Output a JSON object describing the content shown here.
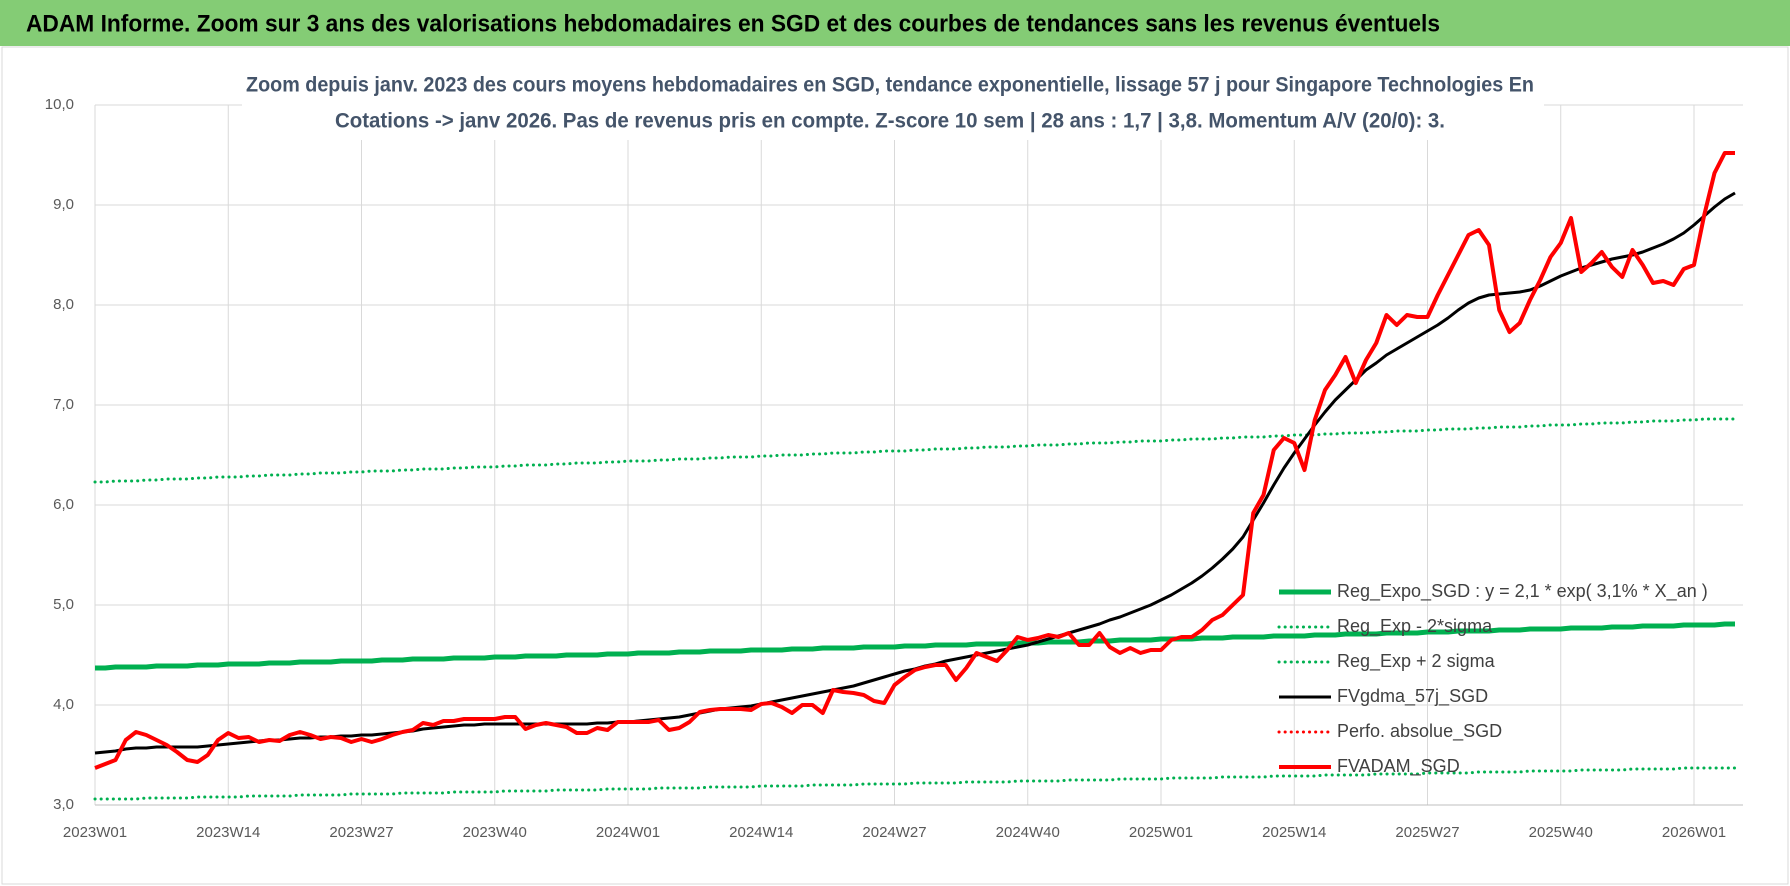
{
  "header": {
    "title": "ADAM Informe. Zoom sur 3 ans des valorisations hebdomadaires en SGD et des courbes de tendances sans les revenus éventuels"
  },
  "chart_data": {
    "type": "line",
    "title": [
      "Zoom depuis janv. 2023 des cours moyens hebdomadaires en SGD, tendance exponentielle, lissage 57 j pour Singapore Technologies En",
      "Cotations -> janv 2026. Pas de revenus pris en compte. Z-score 10 sem | 28 ans : 1,7 | 3,8. Momentum A/V (20/0): 3."
    ],
    "categories": [
      "2023W01",
      null,
      null,
      null,
      null,
      null,
      null,
      null,
      null,
      null,
      null,
      null,
      null,
      "2023W14",
      null,
      null,
      null,
      null,
      null,
      null,
      null,
      null,
      null,
      null,
      null,
      null,
      "2023W27",
      null,
      null,
      null,
      null,
      null,
      null,
      null,
      null,
      null,
      null,
      null,
      null,
      "2023W40",
      null,
      null,
      null,
      null,
      null,
      null,
      null,
      null,
      null,
      null,
      null,
      null,
      "2024W01",
      null,
      null,
      null,
      null,
      null,
      null,
      null,
      null,
      null,
      null,
      null,
      null,
      "2024W14",
      null,
      null,
      null,
      null,
      null,
      null,
      null,
      null,
      null,
      null,
      null,
      null,
      "2024W27",
      null,
      null,
      null,
      null,
      null,
      null,
      null,
      null,
      null,
      null,
      null,
      null,
      "2024W40",
      null,
      null,
      null,
      null,
      null,
      null,
      null,
      null,
      null,
      null,
      null,
      null,
      "2025W01",
      null,
      null,
      null,
      null,
      null,
      null,
      null,
      null,
      null,
      null,
      null,
      null,
      "2025W14",
      null,
      null,
      null,
      null,
      null,
      null,
      null,
      null,
      null,
      null,
      null,
      null,
      "2025W27",
      null,
      null,
      null,
      null,
      null,
      null,
      null,
      null,
      null,
      null,
      null,
      null,
      "2025W40",
      null,
      null,
      null,
      null,
      null,
      null,
      null,
      null,
      null,
      null,
      null,
      null,
      "2026W01",
      null,
      null,
      null,
      null
    ],
    "ylim": [
      3,
      10
    ],
    "yticks": [
      {
        "value": 3,
        "label": "3,0"
      },
      {
        "value": 4,
        "label": "4,0"
      },
      {
        "value": 5,
        "label": "5,0"
      },
      {
        "value": 6,
        "label": "6,0"
      },
      {
        "value": 7,
        "label": "7,0"
      },
      {
        "value": 8,
        "label": "8,0"
      },
      {
        "value": 9,
        "label": "9,0"
      },
      {
        "value": 10,
        "label": "10,0"
      }
    ],
    "grid": true,
    "legend": "lower right",
    "series": [
      {
        "name": "Reg_Expo_SGD : y = 2,1 * exp( 3,1% * X_an )",
        "color": "#00b050",
        "style": "solid",
        "width": 5,
        "values": [
          4.37,
          4.37,
          4.38,
          4.38,
          4.38,
          4.38,
          4.39,
          4.39,
          4.39,
          4.39,
          4.4,
          4.4,
          4.4,
          4.41,
          4.41,
          4.41,
          4.41,
          4.42,
          4.42,
          4.42,
          4.43,
          4.43,
          4.43,
          4.43,
          4.44,
          4.44,
          4.44,
          4.44,
          4.45,
          4.45,
          4.45,
          4.46,
          4.46,
          4.46,
          4.46,
          4.47,
          4.47,
          4.47,
          4.47,
          4.48,
          4.48,
          4.48,
          4.49,
          4.49,
          4.49,
          4.49,
          4.5,
          4.5,
          4.5,
          4.5,
          4.51,
          4.51,
          4.51,
          4.52,
          4.52,
          4.52,
          4.52,
          4.53,
          4.53,
          4.53,
          4.54,
          4.54,
          4.54,
          4.54,
          4.55,
          4.55,
          4.55,
          4.55,
          4.56,
          4.56,
          4.56,
          4.57,
          4.57,
          4.57,
          4.57,
          4.58,
          4.58,
          4.58,
          4.58,
          4.59,
          4.59,
          4.59,
          4.6,
          4.6,
          4.6,
          4.6,
          4.61,
          4.61,
          4.61,
          4.61,
          4.62,
          4.62,
          4.62,
          4.63,
          4.63,
          4.63,
          4.63,
          4.64,
          4.64,
          4.64,
          4.65,
          4.65,
          4.65,
          4.65,
          4.66,
          4.66,
          4.66,
          4.66,
          4.67,
          4.67,
          4.67,
          4.68,
          4.68,
          4.68,
          4.68,
          4.69,
          4.69,
          4.69,
          4.69,
          4.7,
          4.7,
          4.7,
          4.71,
          4.71,
          4.71,
          4.71,
          4.72,
          4.72,
          4.72,
          4.72,
          4.73,
          4.73,
          4.73,
          4.74,
          4.74,
          4.74,
          4.74,
          4.75,
          4.75,
          4.75,
          4.76,
          4.76,
          4.76,
          4.76,
          4.77,
          4.77,
          4.77,
          4.77,
          4.78,
          4.78,
          4.78,
          4.79,
          4.79,
          4.79,
          4.79,
          4.8,
          4.8,
          4.8,
          4.8,
          4.81,
          4.81
        ]
      },
      {
        "name": "Reg_Exp - 2*sigma",
        "color": "#00b050",
        "style": "dotted",
        "width": 3,
        "values": [
          3.06,
          3.06,
          3.06,
          3.06,
          3.06,
          3.07,
          3.07,
          3.07,
          3.07,
          3.07,
          3.08,
          3.08,
          3.08,
          3.08,
          3.08,
          3.09,
          3.09,
          3.09,
          3.09,
          3.09,
          3.1,
          3.1,
          3.1,
          3.1,
          3.1,
          3.11,
          3.11,
          3.11,
          3.11,
          3.11,
          3.12,
          3.12,
          3.12,
          3.12,
          3.12,
          3.13,
          3.13,
          3.13,
          3.13,
          3.13,
          3.14,
          3.14,
          3.14,
          3.14,
          3.14,
          3.15,
          3.15,
          3.15,
          3.15,
          3.15,
          3.16,
          3.16,
          3.16,
          3.16,
          3.16,
          3.17,
          3.17,
          3.17,
          3.17,
          3.17,
          3.18,
          3.18,
          3.18,
          3.18,
          3.18,
          3.19,
          3.19,
          3.19,
          3.19,
          3.19,
          3.2,
          3.2,
          3.2,
          3.2,
          3.2,
          3.21,
          3.21,
          3.21,
          3.21,
          3.21,
          3.22,
          3.22,
          3.22,
          3.22,
          3.22,
          3.23,
          3.23,
          3.23,
          3.23,
          3.23,
          3.24,
          3.24,
          3.24,
          3.24,
          3.24,
          3.25,
          3.25,
          3.25,
          3.25,
          3.25,
          3.26,
          3.26,
          3.26,
          3.26,
          3.26,
          3.27,
          3.27,
          3.27,
          3.27,
          3.27,
          3.28,
          3.28,
          3.28,
          3.28,
          3.28,
          3.29,
          3.29,
          3.29,
          3.29,
          3.29,
          3.3,
          3.3,
          3.3,
          3.3,
          3.3,
          3.31,
          3.31,
          3.31,
          3.31,
          3.31,
          3.32,
          3.32,
          3.32,
          3.32,
          3.32,
          3.33,
          3.33,
          3.33,
          3.33,
          3.33,
          3.34,
          3.34,
          3.34,
          3.34,
          3.34,
          3.35,
          3.35,
          3.35,
          3.35,
          3.35,
          3.36,
          3.36,
          3.36,
          3.36,
          3.36,
          3.37,
          3.37,
          3.37,
          3.37,
          3.37,
          3.37
        ]
      },
      {
        "name": "Reg_Exp + 2 sigma",
        "color": "#00b050",
        "style": "dotted",
        "width": 3,
        "values": [
          6.23,
          6.23,
          6.24,
          6.24,
          6.24,
          6.25,
          6.25,
          6.26,
          6.26,
          6.26,
          6.27,
          6.27,
          6.28,
          6.28,
          6.28,
          6.29,
          6.29,
          6.3,
          6.3,
          6.3,
          6.31,
          6.31,
          6.32,
          6.32,
          6.32,
          6.33,
          6.33,
          6.34,
          6.34,
          6.34,
          6.35,
          6.35,
          6.36,
          6.36,
          6.36,
          6.37,
          6.37,
          6.38,
          6.38,
          6.38,
          6.39,
          6.39,
          6.4,
          6.4,
          6.4,
          6.41,
          6.41,
          6.42,
          6.42,
          6.42,
          6.43,
          6.43,
          6.44,
          6.44,
          6.44,
          6.45,
          6.45,
          6.46,
          6.46,
          6.46,
          6.47,
          6.47,
          6.48,
          6.48,
          6.48,
          6.49,
          6.49,
          6.5,
          6.5,
          6.5,
          6.51,
          6.51,
          6.52,
          6.52,
          6.52,
          6.53,
          6.53,
          6.54,
          6.54,
          6.54,
          6.55,
          6.55,
          6.56,
          6.56,
          6.56,
          6.57,
          6.57,
          6.58,
          6.58,
          6.58,
          6.59,
          6.59,
          6.6,
          6.6,
          6.6,
          6.61,
          6.61,
          6.62,
          6.62,
          6.62,
          6.63,
          6.63,
          6.64,
          6.64,
          6.64,
          6.65,
          6.65,
          6.66,
          6.66,
          6.66,
          6.67,
          6.67,
          6.68,
          6.68,
          6.68,
          6.69,
          6.69,
          6.7,
          6.7,
          6.7,
          6.71,
          6.71,
          6.72,
          6.72,
          6.72,
          6.73,
          6.73,
          6.74,
          6.74,
          6.74,
          6.75,
          6.75,
          6.76,
          6.76,
          6.76,
          6.77,
          6.77,
          6.78,
          6.78,
          6.78,
          6.79,
          6.79,
          6.8,
          6.8,
          6.8,
          6.81,
          6.81,
          6.82,
          6.82,
          6.82,
          6.83,
          6.83,
          6.84,
          6.84,
          6.84,
          6.85,
          6.85,
          6.86,
          6.86,
          6.86,
          6.86
        ]
      },
      {
        "name": "FVgdma_57j_SGD",
        "color": "#000000",
        "style": "solid",
        "width": 3,
        "values": [
          3.52,
          3.53,
          3.54,
          3.56,
          3.57,
          3.57,
          3.58,
          3.58,
          3.58,
          3.58,
          3.58,
          3.59,
          3.6,
          3.61,
          3.62,
          3.63,
          3.64,
          3.65,
          3.65,
          3.66,
          3.67,
          3.67,
          3.68,
          3.68,
          3.69,
          3.69,
          3.7,
          3.7,
          3.71,
          3.72,
          3.73,
          3.74,
          3.76,
          3.77,
          3.78,
          3.79,
          3.8,
          3.8,
          3.81,
          3.81,
          3.81,
          3.81,
          3.81,
          3.81,
          3.81,
          3.81,
          3.81,
          3.81,
          3.81,
          3.82,
          3.82,
          3.83,
          3.83,
          3.84,
          3.85,
          3.86,
          3.87,
          3.88,
          3.9,
          3.92,
          3.94,
          3.96,
          3.97,
          3.98,
          3.99,
          4.01,
          4.03,
          4.05,
          4.07,
          4.09,
          4.11,
          4.13,
          4.15,
          4.17,
          4.19,
          4.22,
          4.25,
          4.28,
          4.31,
          4.34,
          4.36,
          4.39,
          4.41,
          4.44,
          4.46,
          4.48,
          4.5,
          4.52,
          4.54,
          4.56,
          4.58,
          4.6,
          4.63,
          4.66,
          4.69,
          4.72,
          4.75,
          4.78,
          4.81,
          4.85,
          4.88,
          4.92,
          4.96,
          5.0,
          5.05,
          5.1,
          5.16,
          5.22,
          5.29,
          5.37,
          5.46,
          5.56,
          5.68,
          5.85,
          6.02,
          6.2,
          6.37,
          6.52,
          6.66,
          6.8,
          6.93,
          7.05,
          7.15,
          7.25,
          7.35,
          7.42,
          7.5,
          7.56,
          7.62,
          7.68,
          7.74,
          7.8,
          7.87,
          7.95,
          8.02,
          8.07,
          8.1,
          8.11,
          8.12,
          8.13,
          8.15,
          8.19,
          8.24,
          8.29,
          8.33,
          8.37,
          8.4,
          8.43,
          8.46,
          8.48,
          8.5,
          8.53,
          8.57,
          8.61,
          8.66,
          8.72,
          8.8,
          8.89,
          8.98,
          9.06,
          9.12
        ]
      },
      {
        "name": "Perfo. absolue_SGD",
        "color": "#ff0000",
        "style": "dotted",
        "width": 3
      },
      {
        "name": "FVADAM_SGD",
        "color": "#ff0000",
        "style": "solid",
        "width": 4,
        "values": [
          3.37,
          3.41,
          3.45,
          3.65,
          3.73,
          3.7,
          3.65,
          3.6,
          3.53,
          3.45,
          3.43,
          3.5,
          3.65,
          3.72,
          3.67,
          3.68,
          3.63,
          3.65,
          3.64,
          3.7,
          3.73,
          3.7,
          3.66,
          3.68,
          3.67,
          3.63,
          3.66,
          3.63,
          3.66,
          3.7,
          3.73,
          3.75,
          3.82,
          3.8,
          3.84,
          3.84,
          3.86,
          3.86,
          3.86,
          3.86,
          3.88,
          3.88,
          3.76,
          3.8,
          3.82,
          3.8,
          3.78,
          3.72,
          3.72,
          3.77,
          3.75,
          3.83,
          3.83,
          3.83,
          3.83,
          3.85,
          3.75,
          3.77,
          3.83,
          3.93,
          3.95,
          3.96,
          3.96,
          3.96,
          3.95,
          4.01,
          4.02,
          3.98,
          3.92,
          4.0,
          4.0,
          3.92,
          4.15,
          4.13,
          4.12,
          4.1,
          4.04,
          4.02,
          4.2,
          4.28,
          4.35,
          4.38,
          4.4,
          4.4,
          4.25,
          4.37,
          4.52,
          4.48,
          4.44,
          4.55,
          4.68,
          4.65,
          4.67,
          4.7,
          4.68,
          4.72,
          4.6,
          4.6,
          4.72,
          4.58,
          4.52,
          4.57,
          4.52,
          4.55,
          4.55,
          4.65,
          4.68,
          4.68,
          4.75,
          4.85,
          4.9,
          5.0,
          5.1,
          5.92,
          6.1,
          6.55,
          6.67,
          6.62,
          6.35,
          6.85,
          7.15,
          7.3,
          7.48,
          7.22,
          7.45,
          7.62,
          7.9,
          7.8,
          7.9,
          7.88,
          7.88,
          8.1,
          8.3,
          8.5,
          8.7,
          8.75,
          8.6,
          7.95,
          7.73,
          7.82,
          8.05,
          8.25,
          8.48,
          8.62,
          8.87,
          8.33,
          8.42,
          8.53,
          8.38,
          8.28,
          8.55,
          8.4,
          8.22,
          8.24,
          8.2,
          8.36,
          8.4,
          8.9,
          9.32,
          9.52,
          9.52
        ]
      }
    ]
  }
}
